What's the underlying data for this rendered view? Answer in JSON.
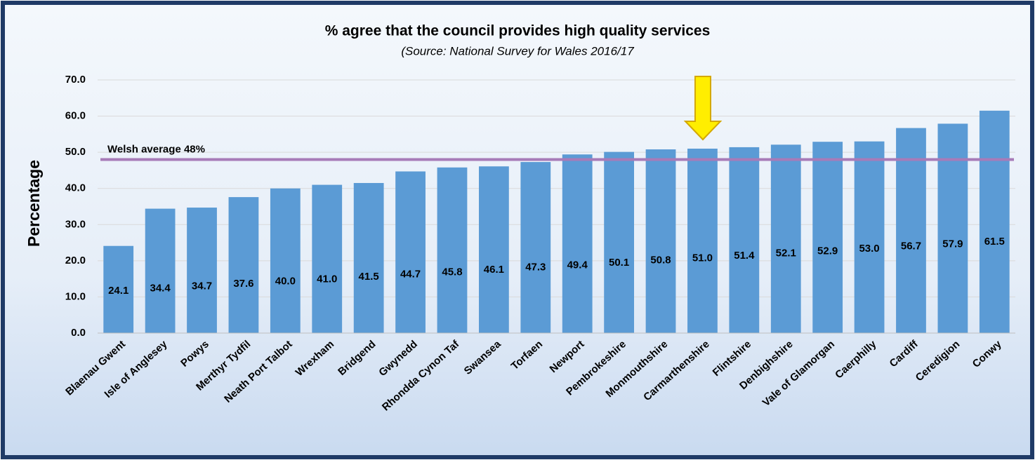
{
  "chart_data": {
    "type": "bar",
    "title": "% agree that the council provides high quality services",
    "subtitle": "(Source: National Survey for Wales 2016/17",
    "y_label": "Percentage",
    "categories": [
      "Blaenau Gwent",
      "Isle of Anglesey",
      "Powys",
      "Merthyr Tydfil",
      "Neath Port Talbot",
      "Wrexham",
      "Bridgend",
      "Gwynedd",
      "Rhondda Cynon Taf",
      "Swansea",
      "Torfaen",
      "Newport",
      "Pembrokeshire",
      "Monmouthshire",
      "Carmarthenshire",
      "Flintshire",
      "Denbighshire",
      "Vale of Glamorgan",
      "Caerphilly",
      "Cardiff",
      "Ceredigion",
      "Conwy"
    ],
    "values": [
      24.1,
      34.4,
      34.7,
      37.6,
      40.0,
      41.0,
      41.5,
      44.7,
      45.8,
      46.1,
      47.3,
      49.4,
      50.1,
      50.8,
      51.0,
      51.4,
      52.1,
      52.9,
      53.0,
      56.7,
      57.9,
      61.5
    ],
    "value_labels": [
      "24.1",
      "34.4",
      "34.7",
      "37.6",
      "40.0",
      "41.0",
      "41.5",
      "44.7",
      "45.8",
      "46.1",
      "47.3",
      "49.4",
      "50.1",
      "50.8",
      "51.0",
      "51.4",
      "52.1",
      "52.9",
      "53.0",
      "56.7",
      "57.9",
      "61.5"
    ],
    "color": "#5b9bd5",
    "ylim": [
      0,
      70
    ],
    "yticks": [
      {
        "value": 0,
        "label": "0.0"
      },
      {
        "value": 10,
        "label": "10.0"
      },
      {
        "value": 20,
        "label": "20.0"
      },
      {
        "value": 30,
        "label": "30.0"
      },
      {
        "value": 40,
        "label": "40.0"
      },
      {
        "value": 50,
        "label": "50.0"
      },
      {
        "value": 60,
        "label": "60.0"
      },
      {
        "value": 70,
        "label": "70.0"
      }
    ],
    "grid": true,
    "reference_line": {
      "value": 48,
      "label": "Welsh average 48%",
      "color": "#a77bb8"
    }
  }
}
